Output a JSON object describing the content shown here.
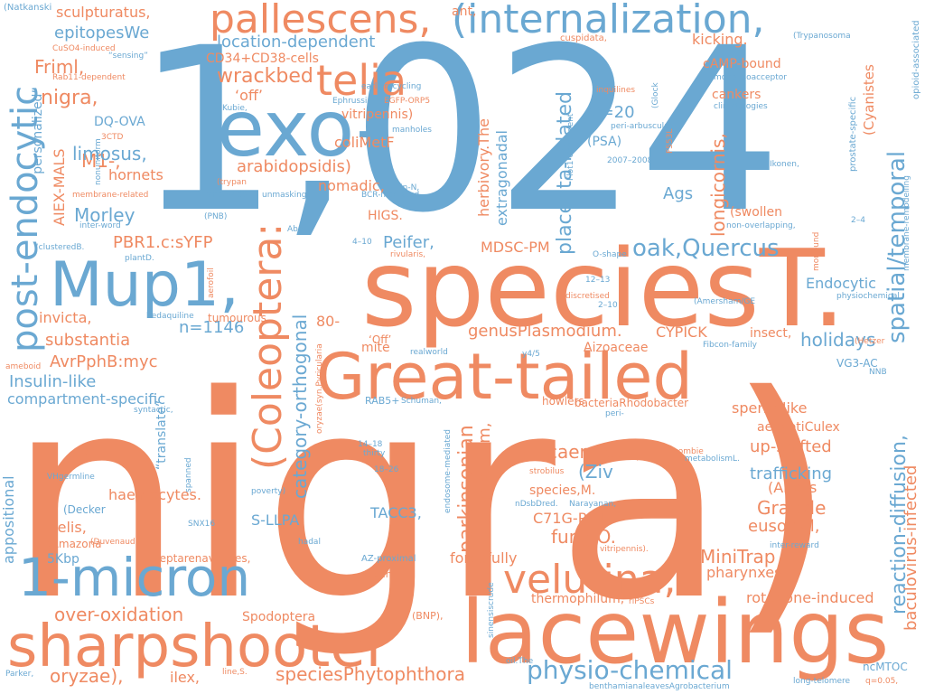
{
  "colors": {
    "blue": "#6aa8d2",
    "orange": "#ef8a62",
    "background": "#ffffff"
  },
  "words": {
    "nigra_big": "nigra)",
    "n1024": "1,024",
    "speciesT": "speciesT.",
    "lacewings": "lacewings",
    "greattailed": "Great-tailed",
    "sharpshooter": "sharpshooter",
    "exo": "exo-",
    "mup1": "Mup1,",
    "micron": "1-micron",
    "internalization": "(internalization,",
    "pallescens": "pallescens,",
    "telia": "telia",
    "velutina": "velutina,",
    "postendocytic": "post-endocytic",
    "coleoptera": "(Coleoptera:",
    "physiochemical": "physio-chemical",
    "oakquercus": "oak,Quercus",
    "spatial": "spatial/temporal",
    "reaction": "reaction-diffusion,",
    "placenta": "placenta-related",
    "longicornis": "longicornis,",
    "locationdep": "location-dependent",
    "arabidopsidis": "arabidopsidis)",
    "substantia": "substantia",
    "avrpphb": "AvrPphB:myc",
    "insulinlike": "Insulin-like",
    "genusplasmodium": "genusPlasmodium.",
    "speciesphytophthora": "speciesPhytophthora",
    "overoxidation": "over-oxidation",
    "oryzae": "oryzae),",
    "caeruleus": "caeruleus,",
    "fungio": "fungiO.",
    "grackle": "Grackle",
    "minitrap": "MiniTrap",
    "rotenone": "rotenone-induced",
    "holidays": "holidays",
    "endocytic": "Endocytic",
    "spermlike": "sperm-like",
    "upshifted": "up-shifted",
    "trafficking": "trafficking",
    "anolis": "(Anolis",
    "eusocial": "eusocial,",
    "baculovirus": "baculovirus-infected",
    "categoryorth": "category-orthogonal",
    "kicking": "kicking.",
    "camp": "cAMP-bound",
    "cankers": "cankers",
    "c20": "C=20",
    "cyanistes": "(Cyanistes",
    "swollen": "(swollen",
    "pbr1": "PBR1.c:sYFP",
    "morley": "Morley",
    "n1146": "n=1146",
    "invicta": "invicta,",
    "peifer": "Peifer,",
    "limosus": "limosus,",
    "wrackbed": "wrackbed",
    "cd34": "CD34+CD38-cells",
    "epitopeswe": "epitopesWe",
    "sculpturatus": "sculpturatus,",
    "friml": "Friml,",
    "nigra_small": "nigra,",
    "aiexmals": "AIEX-MALS",
    "m1": "M1-,",
    "hornets": "hornets",
    "dqova": "DQ-OVA",
    "compartment": "compartment-specific",
    "h48": "48H",
    "felis": "felis,",
    "kbp5": "5Kbp",
    "haemocytes": "haemocytes.",
    "translate": "“translate”",
    "sllpa": "S-LLPA",
    "appositional": "appositional",
    "amazona": "(Amazona",
    "decker": "(Decker",
    "reptarena": "reptarenaviruses,",
    "spodoptera": "Spodoptera",
    "ilex": "ilex,",
    "parkinsonian": "parkinsonian",
    "stramonium": "stramonium,",
    "forcefully": "forcefully",
    "pharynxes": "pharynxes",
    "thermophilum": "thermophilum,",
    "ziv": "(Ziv",
    "speciesm": "species,M.",
    "c71g": "C71G-PFN1",
    "tacc3": "TACC3,",
    "herbivory": "herbivory.The",
    "extragonadal": "extragonadal",
    "mdscpm": "MDSC-PM",
    "ags": "Ags",
    "psa": "(PSA)",
    "cypick": "CYPICK",
    "insect": "insect,",
    "aizoaceae": "Aizoaceae",
    "bacteriarhodo": "bacteriaRhodobacter",
    "aegypticulex": "aegyptiCulex",
    "howlers": "howlers",
    "vg3ac": "VG3-AC",
    "ncmtoc": "ncMTOC",
    "off1": "‘off’",
    "off2": "‘Off’",
    "mite": "mite",
    "n80": "80-",
    "higs": "HIGS.",
    "nomadic": "nomadic,",
    "colimetf": "coliMetF",
    "vitripennis": "vitripennis)",
    "tumourous": "tumourous",
    "personalized": "“personalized”",
    "ant": "ant,",
    "cuspidata": "cuspidata,",
    "natkanski": "(Natkanski",
    "cuso4": "CuSO4-induced",
    "rab11": "Rab11-dependent",
    "sensing": "“sensing”",
    "earlyrecycling": "early/recycling",
    "trypanosoma": "(Trypanosoma",
    "opioid": "opioid-associated",
    "monoiso": "mono-isoacceptor",
    "inquilines": "inquilines",
    "glock": "(Glock",
    "climatologies": "climatologies",
    "periarbuscular": "peri-arbuscular",
    "ephrussi": "Ephrussi,",
    "egfporp5": "EGFP-ORP5",
    "kubie": "Kubie,",
    "manholes": "manholes",
    "prostate": "prostate-specific",
    "n20072008": "2007–2008",
    "f553l": "F553L",
    "ikonen": "Ikonen,",
    "flot1": "Flot1-dependent",
    "enn": "En-N,",
    "trypan": "(trypan",
    "rangewide": "rangewide",
    "unmasking": "unmasking.",
    "bcr": "BCR-mediated",
    "membranerelated": "membrane-related",
    "interword": "inter-word",
    "ctd3": "3CTD",
    "nonuniform": "nonuniform",
    "pnb": "(PNB)",
    "abp1": "Abp1",
    "nonoverlap": "non-overlapping,",
    "n24": "2–4",
    "membraneremodel": "membrane-remodelling",
    "clusteredb": "“clusteredB.",
    "plantd": "plantD.",
    "n410": "4–10",
    "rivularis": "rivularis,",
    "oshape": "O-shape",
    "moribund": "moribund",
    "aerofoil": "aerofoil",
    "bedaquiline": "bedaquiline",
    "n1213": "12–13",
    "discretised": "discretised",
    "n210": "2–10",
    "amersham": "(Amersham/GE",
    "physiochem_small": "physiochemical",
    "fibcon": "Fibcon-family",
    "realworld": "realworld",
    "y45": "y4/5",
    "hetzer": "(Hetzer",
    "nnb": "NNB",
    "ameboid": "ameboid",
    "rab5": "RAB5+",
    "schuman": "Schuman,",
    "syntactic": "syntactic,",
    "peri": "peri-",
    "zombie": "zombie",
    "metabolism": "metabolismL.",
    "oryzaesyn": "oryzae(syn.Pyricularia",
    "n1418": "14–18",
    "thirty": "thirty",
    "n1826": "18–26",
    "endosome": "endosome-mediated",
    "vhgermline": "VHgermline",
    "spanned": "spanned",
    "strobilus": "strobilus",
    "ndsbdred": "nDsbDred.",
    "narayanan": "Narayanan,",
    "poverty": "poverty)",
    "snx16": "SNX16",
    "duvenaud": "(Duvenaud",
    "hadal": "hadal",
    "vitripennis2": "vitripennis).",
    "interreward": "inter-reward",
    "azproximal": "AZ-proximal",
    "open": "(open).",
    "ripscs": "riPSCs",
    "bnp": "(BNP),",
    "sinensiscrude": "sinensiscrude",
    "oilthe": "oil.The",
    "parker": "Parker,",
    "lines": "line,S.",
    "benthamiana": "benthamianaleavesAgrobacterium",
    "longtelomere": "long-telomere",
    "q005": "q=0.05,"
  }
}
